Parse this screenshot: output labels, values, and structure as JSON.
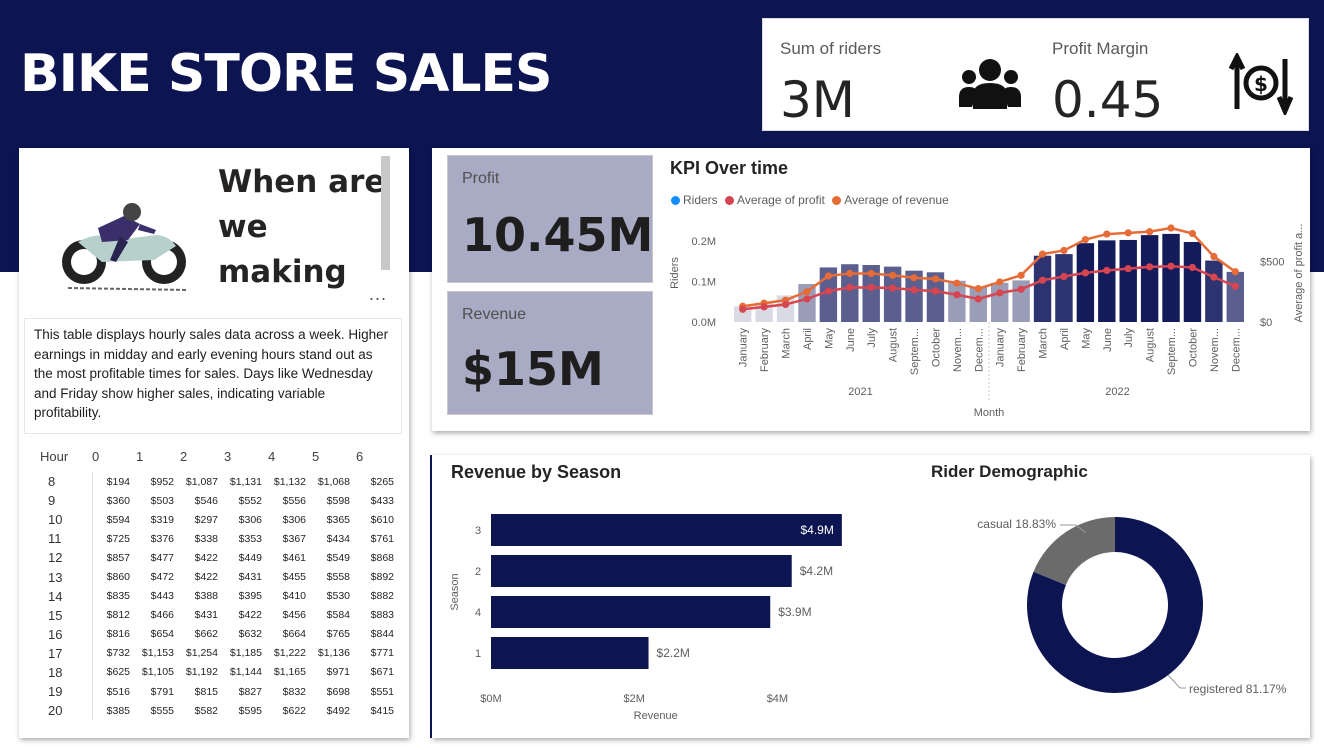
{
  "header": {
    "title": "BIKE STORE SALES"
  },
  "kpis": {
    "riders_label": "Sum of riders",
    "riders_value": "3M",
    "margin_label": "Profit Margin",
    "margin_value": "0.45"
  },
  "tiles": {
    "profit_label": "Profit",
    "profit_value": "10.45M",
    "revenue_label": "Revenue",
    "revenue_value": "$15M"
  },
  "intro": {
    "heading_lines": [
      "When are",
      "we",
      "making"
    ],
    "more": "...",
    "description": "This table displays hourly sales data across a week. Higher earnings in midday and early evening hours stand out as the most profitable times for sales. Days like Wednesday and Friday show higher sales, indicating variable profitability."
  },
  "hour_table": {
    "columns": [
      "Hour",
      "0",
      "1",
      "2",
      "3",
      "4",
      "5",
      "6"
    ],
    "rows": [
      [
        "8",
        "$194",
        "$952",
        "$1,087",
        "$1,131",
        "$1,132",
        "$1,068",
        "$265"
      ],
      [
        "9",
        "$360",
        "$503",
        "$546",
        "$552",
        "$556",
        "$598",
        "$433"
      ],
      [
        "10",
        "$594",
        "$319",
        "$297",
        "$306",
        "$306",
        "$365",
        "$610"
      ],
      [
        "11",
        "$725",
        "$376",
        "$338",
        "$353",
        "$367",
        "$434",
        "$761"
      ],
      [
        "12",
        "$857",
        "$477",
        "$422",
        "$449",
        "$461",
        "$549",
        "$868"
      ],
      [
        "13",
        "$860",
        "$472",
        "$422",
        "$431",
        "$455",
        "$558",
        "$892"
      ],
      [
        "14",
        "$835",
        "$443",
        "$388",
        "$395",
        "$410",
        "$530",
        "$882"
      ],
      [
        "15",
        "$812",
        "$466",
        "$431",
        "$422",
        "$456",
        "$584",
        "$883"
      ],
      [
        "16",
        "$816",
        "$654",
        "$662",
        "$632",
        "$664",
        "$765",
        "$844"
      ],
      [
        "17",
        "$732",
        "$1,153",
        "$1,254",
        "$1,185",
        "$1,222",
        "$1,136",
        "$771"
      ],
      [
        "18",
        "$625",
        "$1,105",
        "$1,192",
        "$1,144",
        "$1,165",
        "$971",
        "$671"
      ],
      [
        "19",
        "$516",
        "$791",
        "$815",
        "$827",
        "$832",
        "$698",
        "$551"
      ],
      [
        "20",
        "$385",
        "$555",
        "$582",
        "$595",
        "$622",
        "$492",
        "$415"
      ]
    ]
  },
  "chart_data": [
    {
      "type": "bar",
      "title": "KPI Over time",
      "xlabel": "Month",
      "ylabel": "Riders",
      "y2label": "Average of profit a...",
      "legend_position": "top-left",
      "year_labels": [
        "2021",
        "2022"
      ],
      "categories": [
        "January",
        "February",
        "March",
        "April",
        "May",
        "June",
        "July",
        "August",
        "Septem...",
        "October",
        "Novem...",
        "Decem...",
        "January",
        "February",
        "March",
        "April",
        "May",
        "June",
        "July",
        "August",
        "Septem...",
        "October",
        "Novem...",
        "Decem..."
      ],
      "y_ticks": [
        "0.0M",
        "0.1M",
        "0.2M"
      ],
      "y2_ticks": [
        "$0",
        "$500"
      ],
      "ylim": [
        0,
        0.24
      ],
      "y2lim": [
        0,
        800
      ],
      "series": [
        {
          "name": "Riders",
          "kind": "bar",
          "color": "#118dff",
          "values": [
            0.039,
            0.048,
            0.066,
            0.094,
            0.135,
            0.143,
            0.141,
            0.137,
            0.127,
            0.123,
            0.102,
            0.087,
            0.097,
            0.103,
            0.164,
            0.168,
            0.195,
            0.202,
            0.203,
            0.215,
            0.218,
            0.198,
            0.152,
            0.124
          ]
        },
        {
          "name": "Average of profit",
          "kind": "line",
          "color": "#d64550",
          "values": [
            105,
            125,
            145,
            190,
            255,
            285,
            285,
            280,
            265,
            255,
            225,
            190,
            240,
            270,
            345,
            375,
            405,
            425,
            440,
            455,
            460,
            450,
            370,
            295
          ]
        },
        {
          "name": "Average of revenue",
          "kind": "line",
          "color": "#e66c37",
          "values": [
            130,
            155,
            180,
            250,
            380,
            400,
            400,
            385,
            365,
            355,
            320,
            275,
            330,
            385,
            560,
            590,
            680,
            725,
            735,
            745,
            775,
            730,
            540,
            415
          ]
        }
      ]
    },
    {
      "type": "bar",
      "orientation": "horizontal",
      "title": "Revenue by Season",
      "xlabel": "Revenue",
      "ylabel": "Season",
      "categories": [
        "3",
        "2",
        "4",
        "1"
      ],
      "values": [
        4.9,
        4.2,
        3.9,
        2.2
      ],
      "labels": [
        "$4.9M",
        "$4.2M",
        "$3.9M",
        "$2.2M"
      ],
      "x_ticks": [
        "$0M",
        "$2M",
        "$4M"
      ],
      "xlim": [
        0,
        5
      ],
      "color": "#0c1452"
    },
    {
      "type": "pie",
      "donut": true,
      "title": "Rider Demographic",
      "slices": [
        {
          "label": "registered 81.17%",
          "value": 81.17,
          "color": "#0c1452"
        },
        {
          "label": "casual 18.83%",
          "value": 18.83,
          "color": "#6b6b6b"
        }
      ]
    }
  ]
}
